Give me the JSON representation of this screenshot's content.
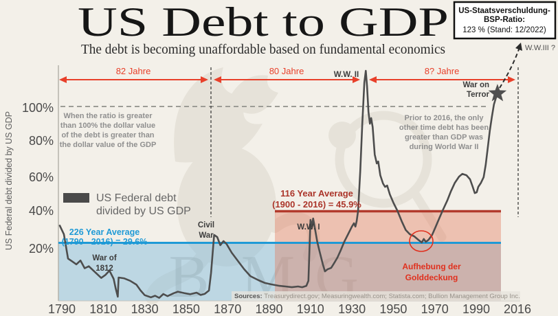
{
  "header": {
    "title": "US Debt to GDP",
    "subtitle": "The debt is becoming unaffordable based on fundamental economics"
  },
  "info_box": {
    "line1": "US-Staatsverschuldung-",
    "line2": "BSP-Ratio:",
    "line3": "123 % (Stand: 12/2022)"
  },
  "era_arrows": {
    "first": "82 Jahre",
    "second": "80 Jahre",
    "third": "8? Jahre"
  },
  "war_labels": {
    "ww2": "W.W. II",
    "ww1": "W.W. I",
    "civil_war_line1": "Civil",
    "civil_war_line2": "War",
    "war_1812_line1": "War of",
    "war_1812_line2": "1812",
    "war_on_terror_line1": "War on",
    "war_on_terror_line2": "Terror",
    "ww3": "W.W.III ?"
  },
  "annotations": {
    "left_note": [
      "When the ratio is greater",
      "than 100% the dollar value",
      "of the debt is greater than",
      "the dollar value of the GDP"
    ],
    "right_note": [
      "Prior to 2016, the only",
      "other time debt has been",
      "greater than GDP was",
      "during World War II"
    ],
    "gold_note": [
      "Aufhebung der",
      "Golddeckung"
    ]
  },
  "legend": {
    "line1": "US Federal debt",
    "line2": "divided by US GDP"
  },
  "averages": {
    "blue": {
      "line1": "226 Year Average",
      "line2": "(1790 - 2016) = 29.6%",
      "value": 29.6,
      "color": "#1f9ad6"
    },
    "red": {
      "line1": "116 Year Average",
      "line2": "(1900 - 2016) = 45.9%",
      "value": 45.9,
      "color": "#b23a2c"
    }
  },
  "sources": {
    "label": "Sources: ",
    "text": "Treasurydirect.gov; Measuringwealth.com; Statista.com; Bullion Management Group Inc."
  },
  "watermark": {
    "letters": [
      "B",
      "M",
      "G"
    ]
  },
  "chart_data": {
    "type": "line",
    "title": "US Debt to GDP",
    "ylabel": "US Federal debt divided by US GDP",
    "y_ticks": [
      "100%",
      "80%",
      "60%",
      "40%",
      "20%"
    ],
    "x_ticks": [
      "1790",
      "1810",
      "1830",
      "1850",
      "1870",
      "1890",
      "1910",
      "1930",
      "1950",
      "1970",
      "1990",
      "2016"
    ],
    "ylim": [
      0,
      120
    ],
    "xlim": [
      1790,
      2016
    ],
    "grid": "dashed line at 100% only",
    "legend_position": "middle-left",
    "series_name": "US Federal debt divided by US GDP",
    "reference_lines": [
      {
        "name": "226 Year Average (1790 - 2016)",
        "value": 29.6,
        "span_years": [
          1790,
          2016
        ]
      },
      {
        "name": "116 Year Average (1900 - 2016)",
        "value": 45.9,
        "span_years": [
          1893,
          2016
        ]
      }
    ],
    "series": [
      [
        1789,
        38.5
      ],
      [
        1791,
        34
      ],
      [
        1793,
        21.5
      ],
      [
        1795,
        20
      ],
      [
        1797,
        18.5
      ],
      [
        1799,
        20.5
      ],
      [
        1801,
        16.5
      ],
      [
        1803,
        17.5
      ],
      [
        1806,
        14.5
      ],
      [
        1809,
        11.5
      ],
      [
        1811,
        13
      ],
      [
        1813,
        15.3
      ],
      [
        1815,
        11
      ],
      [
        1816,
        6
      ],
      [
        1817,
        1.8
      ],
      [
        1817.4,
        11.7
      ],
      [
        1820,
        11.3
      ],
      [
        1823,
        10
      ],
      [
        1826,
        8
      ],
      [
        1828,
        5
      ],
      [
        1830,
        2.6
      ],
      [
        1833,
        1.5
      ],
      [
        1835,
        2.3
      ],
      [
        1837,
        1.2
      ],
      [
        1839,
        3.2
      ],
      [
        1841,
        2.1
      ],
      [
        1844,
        3.6
      ],
      [
        1846,
        4.4
      ],
      [
        1849,
        3.7
      ],
      [
        1852,
        3.1
      ],
      [
        1855,
        3.9
      ],
      [
        1857,
        2.7
      ],
      [
        1859,
        3.3
      ],
      [
        1861,
        5
      ],
      [
        1862,
        14
      ],
      [
        1863.5,
        33.7
      ],
      [
        1865,
        32.6
      ],
      [
        1866.5,
        28.4
      ],
      [
        1868,
        30.5
      ],
      [
        1869.5,
        29
      ],
      [
        1872,
        24.5
      ],
      [
        1875,
        20.2
      ],
      [
        1878,
        16
      ],
      [
        1881,
        12.4
      ],
      [
        1885,
        10.3
      ],
      [
        1888,
        8.9
      ],
      [
        1891,
        8.2
      ],
      [
        1895,
        7.4
      ],
      [
        1898,
        7.1
      ],
      [
        1901,
        6.7
      ],
      [
        1904,
        7.1
      ],
      [
        1906,
        6.7
      ],
      [
        1908,
        7.4
      ],
      [
        1909,
        10
      ],
      [
        1910,
        41.5
      ],
      [
        1910.7,
        38
      ],
      [
        1911.3,
        42.2
      ],
      [
        1912.3,
        36.2
      ],
      [
        1913.3,
        30.1
      ],
      [
        1914.3,
        25.5
      ],
      [
        1916,
        18.4
      ],
      [
        1917,
        14.9
      ],
      [
        1918.3,
        16
      ],
      [
        1920,
        16.7
      ],
      [
        1921,
        18.4
      ],
      [
        1923,
        22
      ],
      [
        1924.5,
        25.5
      ],
      [
        1926.3,
        30.1
      ],
      [
        1928.3,
        34.4
      ],
      [
        1930,
        38
      ],
      [
        1931,
        39.7
      ],
      [
        1931.7,
        38
      ],
      [
        1932.3,
        40.8
      ],
      [
        1933,
        46.1
      ],
      [
        1934,
        66.3
      ],
      [
        1935,
        91.1
      ],
      [
        1936,
        112.4
      ],
      [
        1936.7,
        118.4
      ],
      [
        1937.3,
        110.6
      ],
      [
        1938,
        97.2
      ],
      [
        1938.7,
        91.1
      ],
      [
        1939.3,
        94
      ],
      [
        1940,
        89.4
      ],
      [
        1941,
        75.2
      ],
      [
        1942,
        70.6
      ],
      [
        1942.7,
        71.6
      ],
      [
        1943.7,
        64.5
      ],
      [
        1945,
        60.3
      ],
      [
        1946,
        58.5
      ],
      [
        1947,
        59.2
      ],
      [
        1948.3,
        54.6
      ],
      [
        1950,
        50.4
      ],
      [
        1952,
        46.1
      ],
      [
        1954,
        40.8
      ],
      [
        1956,
        36.2
      ],
      [
        1958,
        34
      ],
      [
        1960,
        33
      ],
      [
        1962,
        31.2
      ],
      [
        1963.7,
        29.8
      ],
      [
        1964.7,
        31.6
      ],
      [
        1965.7,
        30.1
      ],
      [
        1967,
        31.2
      ],
      [
        1968.7,
        33.7
      ],
      [
        1970.3,
        37.6
      ],
      [
        1972.3,
        42.6
      ],
      [
        1974,
        46.8
      ],
      [
        1976,
        51.4
      ],
      [
        1977.7,
        56
      ],
      [
        1979.7,
        60.6
      ],
      [
        1981.7,
        63.8
      ],
      [
        1983.3,
        65.2
      ],
      [
        1985.3,
        64.5
      ],
      [
        1987,
        62.4
      ],
      [
        1988.3,
        58.5
      ],
      [
        1989.3,
        55.3
      ],
      [
        1990.3,
        55.7
      ],
      [
        1991.3,
        58.5
      ],
      [
        1993,
        60.6
      ],
      [
        1994.7,
        63.5
      ],
      [
        1996,
        69.9
      ],
      [
        1997.3,
        78.7
      ],
      [
        1998.6,
        87.6
      ],
      [
        1999.9,
        94.7
      ],
      [
        2001.2,
        101.1
      ],
      [
        2002.5,
        104.6
      ],
      [
        2003.4,
        106.7
      ]
    ],
    "colors": {
      "curve": "#4d4d4d",
      "blue_line": "#1f9ad6",
      "blue_fill": "rgba(125,185,220,0.45)",
      "red_line": "#b23a2c",
      "red_fill": "rgba(228,122,92,0.40)",
      "accent_red": "#e8402a",
      "background": "#f3f0e9"
    }
  }
}
